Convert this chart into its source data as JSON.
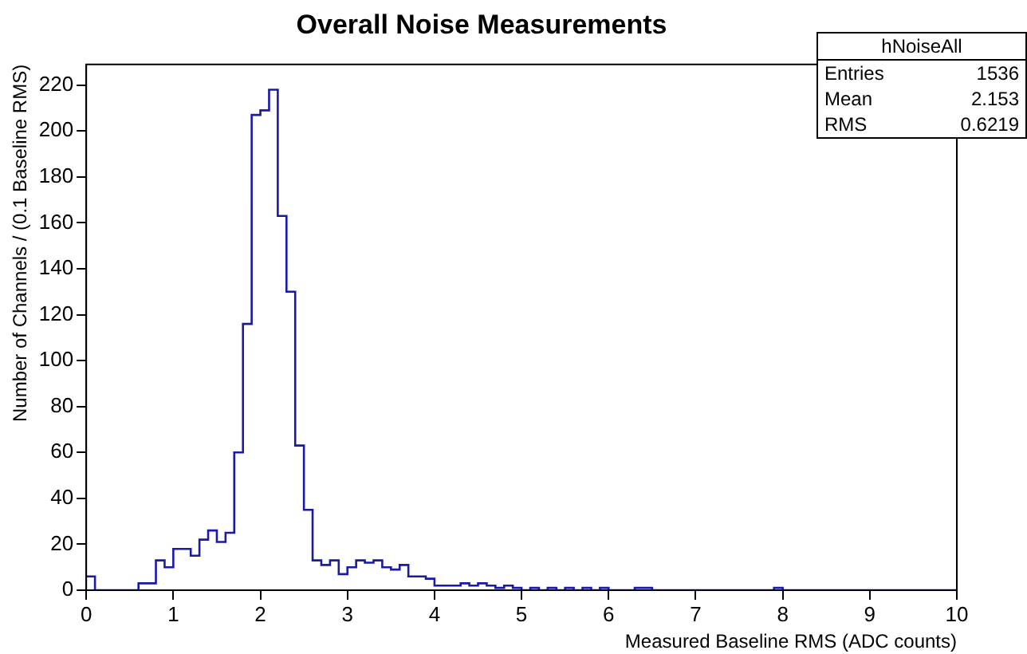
{
  "chart_data": {
    "type": "histogram",
    "title": "Overall Noise Measurements",
    "xlabel": "Measured Baseline RMS (ADC counts)",
    "ylabel": "Number of Channels / (0.1 Baseline RMS)",
    "bins": [
      0,
      0.1,
      0.2,
      0.3,
      0.4,
      0.5,
      0.6,
      0.7,
      0.8,
      0.9,
      1,
      1.1,
      1.2,
      1.3,
      1.4,
      1.5,
      1.6,
      1.7,
      1.8,
      1.9,
      2,
      2.1,
      2.2,
      2.3,
      2.4,
      2.5,
      2.6,
      2.7,
      2.8,
      2.9,
      3,
      3.1,
      3.2,
      3.3,
      3.4,
      3.5,
      3.6,
      3.7,
      3.8,
      3.9,
      4,
      4.1,
      4.2,
      4.3,
      4.4,
      4.5,
      4.6,
      4.7,
      4.8,
      4.9,
      5,
      5.1,
      5.2,
      5.3,
      5.4,
      5.5,
      5.6,
      5.7,
      5.8,
      5.9,
      6,
      6.1,
      6.2,
      6.3,
      6.4,
      6.5,
      6.6,
      6.7,
      6.8,
      6.9,
      7,
      7.1,
      7.2,
      7.3,
      7.4,
      7.5,
      7.6,
      7.7,
      7.8,
      7.9,
      8,
      8.1,
      8.2,
      8.3,
      8.4,
      8.5,
      8.6,
      8.7,
      8.8,
      8.9,
      9,
      9.1,
      9.2,
      9.3,
      9.4,
      9.5,
      9.6,
      9.7,
      9.8,
      9.9,
      10
    ],
    "values": [
      6,
      0,
      0,
      0,
      0,
      0,
      3,
      3,
      13,
      10,
      18,
      18,
      15,
      22,
      26,
      21,
      25,
      60,
      116,
      207,
      209,
      218,
      163,
      130,
      63,
      35,
      13,
      11,
      13,
      7,
      10,
      13,
      12,
      13,
      10,
      9,
      11,
      6,
      6,
      5,
      2,
      2,
      2,
      3,
      2,
      3,
      2,
      1,
      2,
      1,
      0,
      1,
      0,
      1,
      0,
      1,
      0,
      1,
      0,
      1,
      0,
      0,
      0,
      1,
      1,
      0,
      0,
      0,
      0,
      0,
      0,
      0,
      0,
      0,
      0,
      0,
      0,
      0,
      0,
      1,
      0,
      0,
      0,
      0,
      0,
      0,
      0,
      0,
      0,
      0,
      0,
      0,
      0,
      0,
      0,
      0,
      0,
      0,
      0,
      0
    ],
    "color": "#1a1aa6",
    "xlim": [
      0,
      10
    ],
    "xticks": [
      0,
      1,
      2,
      3,
      4,
      5,
      6,
      7,
      8,
      9,
      10
    ],
    "ylim": [
      0,
      229
    ],
    "yticks": [
      0,
      20,
      40,
      60,
      80,
      100,
      120,
      140,
      160,
      180,
      200,
      220
    ],
    "grid": false,
    "legend": false,
    "annotations": [
      "hNoiseAll",
      "Entries",
      "1536",
      "Mean",
      "2.153",
      "RMS",
      "0.6219"
    ]
  }
}
